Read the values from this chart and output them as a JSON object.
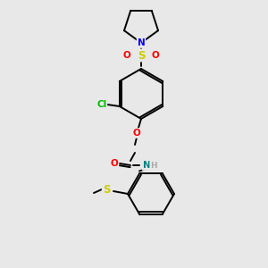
{
  "background_color": "#e8e8e8",
  "atom_colors": {
    "C": "#000000",
    "N_blue": "#0000ff",
    "N_teal": "#008080",
    "O": "#ff0000",
    "S": "#cccc00",
    "Cl": "#00bb00",
    "H": "#aaaaaa"
  },
  "lw": 1.4,
  "fs": 7.5
}
